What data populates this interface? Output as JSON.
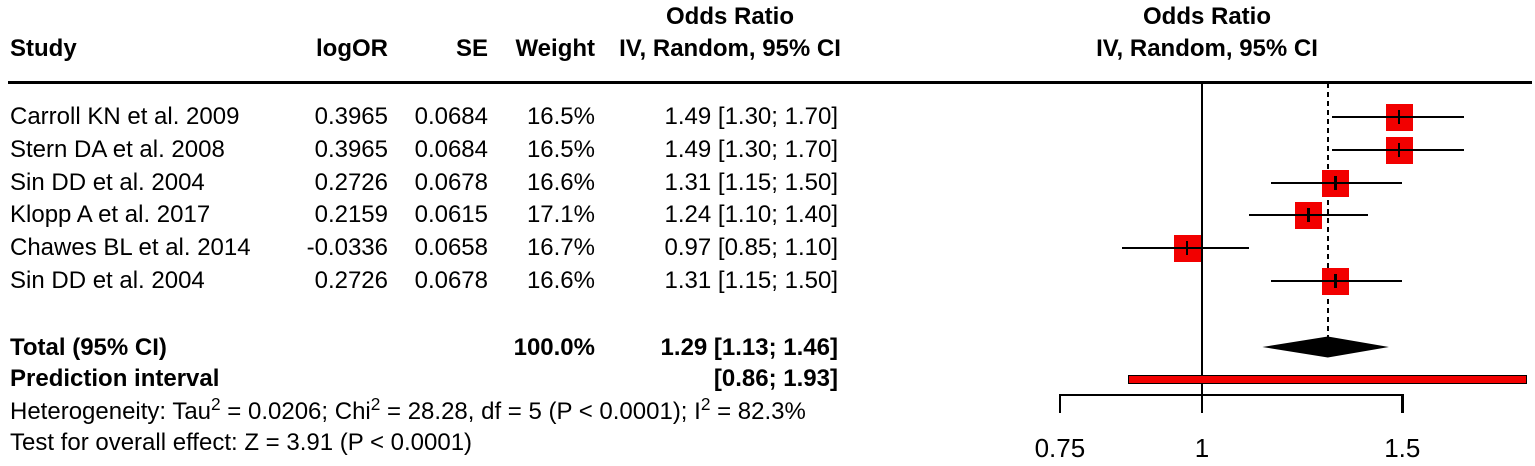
{
  "table_header": {
    "study": "Study",
    "logor": "logOR",
    "se": "SE",
    "weight": "Weight",
    "ci_line1": "Odds Ratio",
    "ci_line2": "IV, Random, 95% CI"
  },
  "plot_header": {
    "line1": "Odds Ratio",
    "line2": "IV, Random, 95% CI"
  },
  "chart_data": {
    "type": "forest",
    "effect_measure": "Odds Ratio",
    "model_label": "IV, Random, 95% CI",
    "x_scale": "log",
    "x_ticks": [
      {
        "value": 0.75,
        "label": "0.75"
      },
      {
        "value": 1,
        "label": "1"
      },
      {
        "value": 1.5,
        "label": "1.5"
      }
    ],
    "reference_line": 1,
    "pooled_line": 1.29,
    "studies": [
      {
        "name": "Carroll KN et al. 2009",
        "logOR": "0.3965",
        "SE": "0.0684",
        "weight": "16.5%",
        "weight_value": 16.5,
        "or": 1.49,
        "ci_low": 1.3,
        "ci_high": 1.7,
        "ci_text": "1.49 [1.30; 1.70]"
      },
      {
        "name": "Stern DA et al. 2008",
        "logOR": "0.3965",
        "SE": "0.0684",
        "weight": "16.5%",
        "weight_value": 16.5,
        "or": 1.49,
        "ci_low": 1.3,
        "ci_high": 1.7,
        "ci_text": "1.49 [1.30; 1.70]"
      },
      {
        "name": "Sin DD et al. 2004",
        "logOR": "0.2726",
        "SE": "0.0678",
        "weight": "16.6%",
        "weight_value": 16.6,
        "or": 1.31,
        "ci_low": 1.15,
        "ci_high": 1.5,
        "ci_text": "1.31 [1.15; 1.50]"
      },
      {
        "name": "Klopp A et al. 2017",
        "logOR": "0.2159",
        "SE": "0.0615",
        "weight": "17.1%",
        "weight_value": 17.1,
        "or": 1.24,
        "ci_low": 1.1,
        "ci_high": 1.4,
        "ci_text": "1.24 [1.10; 1.40]"
      },
      {
        "name": "Chawes BL et al. 2014",
        "logOR": "-0.0336",
        "SE": "0.0658",
        "weight": "16.7%",
        "weight_value": 16.7,
        "or": 0.97,
        "ci_low": 0.85,
        "ci_high": 1.1,
        "ci_text": "0.97 [0.85; 1.10]"
      },
      {
        "name": "Sin DD et al. 2004",
        "logOR": "0.2726",
        "SE": "0.0678",
        "weight": "16.6%",
        "weight_value": 16.6,
        "or": 1.31,
        "ci_low": 1.15,
        "ci_high": 1.5,
        "ci_text": "1.31 [1.15; 1.50]"
      }
    ],
    "total": {
      "label": "Total (95% CI)",
      "weight": "100.0%",
      "or": 1.29,
      "ci_low": 1.13,
      "ci_high": 1.46,
      "ci_text": "1.29 [1.13; 1.46]"
    },
    "prediction": {
      "label": "Prediction interval",
      "ci_low": 0.86,
      "ci_high": 1.93,
      "ci_text": "[0.86; 1.93]"
    },
    "heterogeneity_text": "Heterogeneity: Tau² = 0.0206; Chi² = 28.28, df = 5 (P < 0.0001); I² = 82.3%",
    "overall_effect_text": "Test for overall effect: Z = 3.91 (P < 0.0001)"
  },
  "colors": {
    "square": "#F20000",
    "prediction_bar": "#F20000",
    "diamond": "#000000",
    "line": "#000000"
  }
}
